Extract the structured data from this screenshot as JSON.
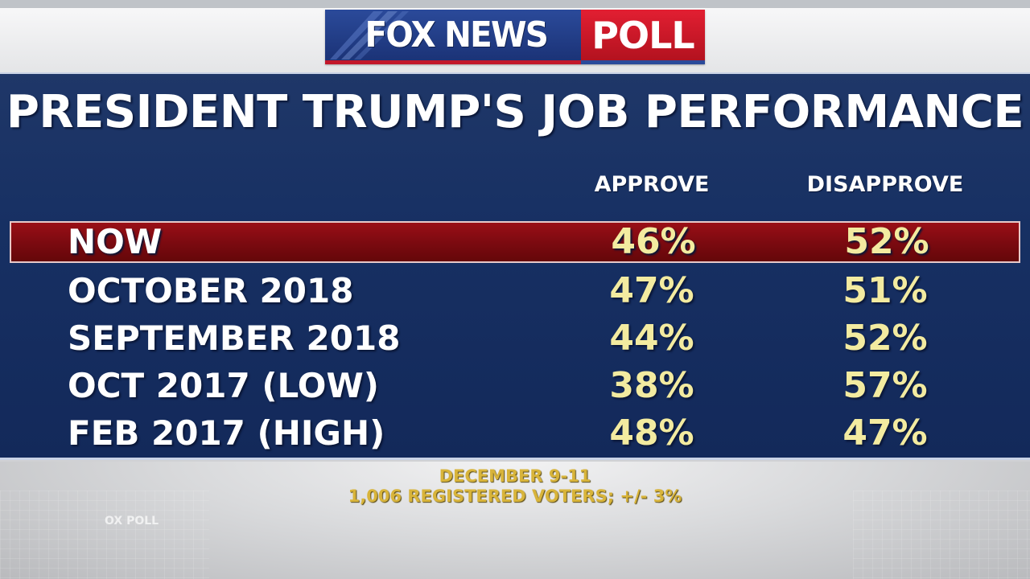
{
  "header": {
    "logo_network": "FOX NEWS",
    "logo_section": "POLL",
    "deco_text": "OX POLL"
  },
  "colors": {
    "panel_blue": "#173063",
    "highlight_red": "#7a0a10",
    "value_yellow": "#f3eba0",
    "footer_gold": "#d8b43a"
  },
  "chart_data": {
    "type": "table",
    "title": "PRESIDENT TRUMP'S JOB PERFORMANCE",
    "columns": [
      "APPROVE",
      "DISAPPROVE"
    ],
    "rows": [
      {
        "label": "NOW",
        "approve": "46%",
        "disapprove": "52%",
        "highlight": true
      },
      {
        "label": "OCTOBER 2018",
        "approve": "47%",
        "disapprove": "51%"
      },
      {
        "label": "SEPTEMBER 2018",
        "approve": "44%",
        "disapprove": "52%"
      },
      {
        "label": "OCT 2017 (LOW)",
        "approve": "38%",
        "disapprove": "57%"
      },
      {
        "label": "FEB 2017 (HIGH)",
        "approve": "48%",
        "disapprove": "47%"
      }
    ],
    "footnote": [
      "DECEMBER 9-11",
      "1,006 REGISTERED VOTERS; +/- 3%"
    ]
  }
}
